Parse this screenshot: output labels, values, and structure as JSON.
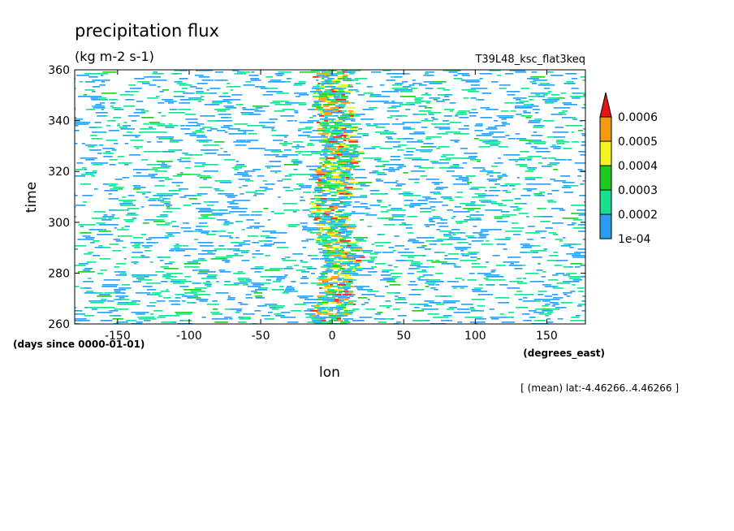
{
  "chart_data": {
    "type": "heatmap",
    "title": "precipitation flux",
    "units": "(kg m-2 s-1)",
    "dataset": "T39L48_ksc_flat3keq",
    "xlabel": "lon",
    "xunits": "(degrees_east)",
    "ylabel": "time",
    "yunits": "(days since 0000-01-01)",
    "subtitle": "[ (mean) lat:-4.46266..4.46266 ]",
    "xlim": [
      -180,
      177
    ],
    "ylim": [
      260,
      360
    ],
    "xticks": [
      -150,
      -100,
      -50,
      0,
      50,
      100,
      150
    ],
    "yticks": [
      260,
      280,
      300,
      320,
      340,
      360
    ],
    "colorbar": {
      "levels": [
        "1e-04",
        "0.0002",
        "0.0003",
        "0.0004",
        "0.0005",
        "0.0006"
      ],
      "colors": [
        "#2a9cf0",
        "#18e08c",
        "#1ec81e",
        "#f4f420",
        "#f49a10",
        "#e81414"
      ]
    }
  }
}
